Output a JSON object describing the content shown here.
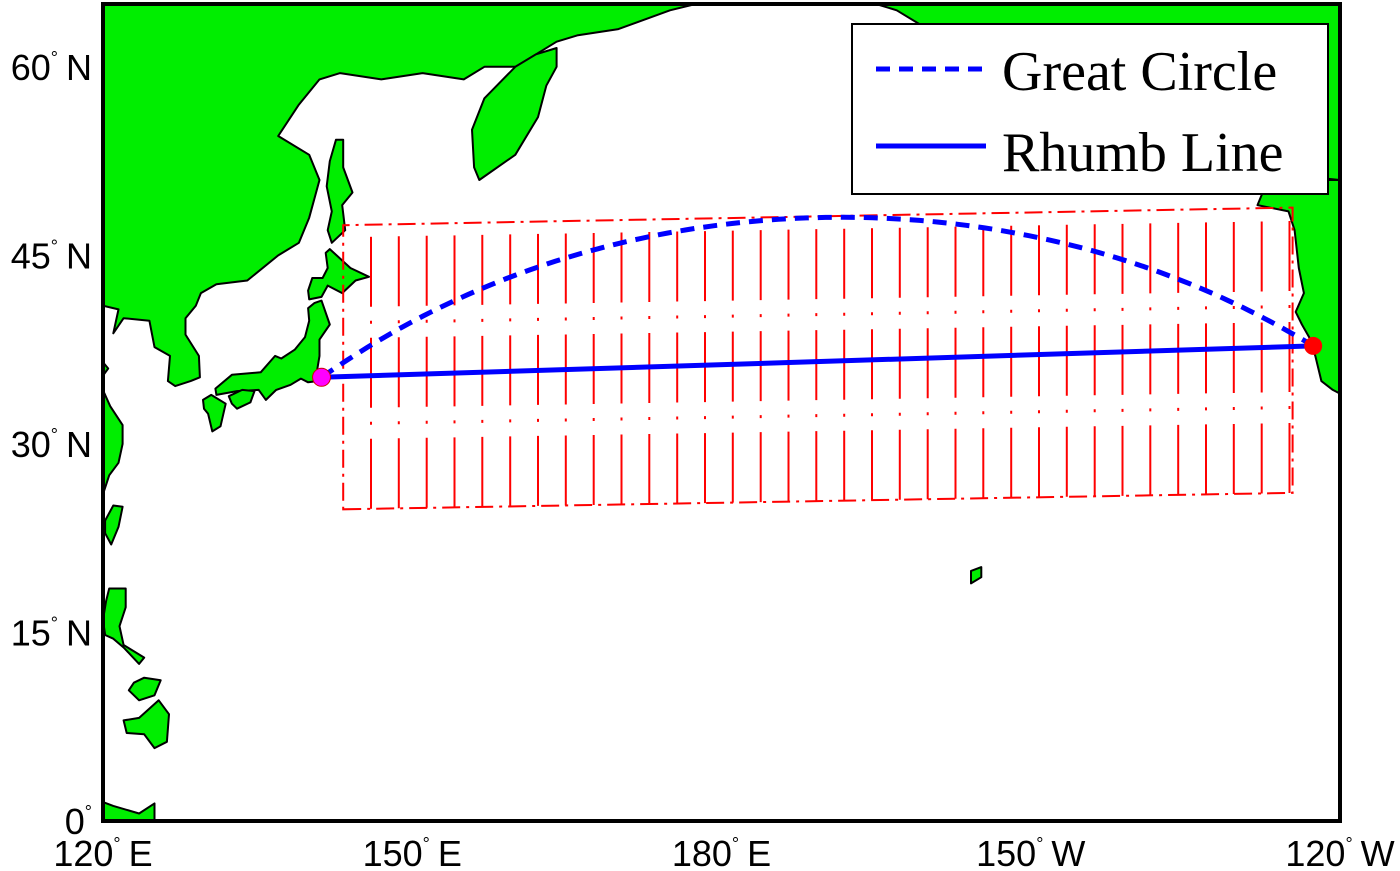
{
  "map": {
    "projection": "equidistant cylindrical",
    "extent": {
      "lon": [
        120,
        240
      ],
      "lat": [
        0,
        65
      ]
    },
    "colors": {
      "land": "#00ee00",
      "coast": "#000000",
      "frame": "#000000",
      "ocean": "#ffffff"
    }
  },
  "ticks": {
    "lat": [
      {
        "value": 0,
        "num": "0",
        "suffix": ""
      },
      {
        "value": 15,
        "num": "15",
        "suffix": "N"
      },
      {
        "value": 30,
        "num": "30",
        "suffix": "N"
      },
      {
        "value": 45,
        "num": "45",
        "suffix": "N"
      },
      {
        "value": 60,
        "num": "60",
        "suffix": "N"
      }
    ],
    "lon": [
      {
        "value": 120,
        "num": "120",
        "suffix": "E"
      },
      {
        "value": 150,
        "num": "150",
        "suffix": "E"
      },
      {
        "value": 180,
        "num": "180",
        "suffix": "E"
      },
      {
        "value": 210,
        "num": "150",
        "suffix": "W"
      },
      {
        "value": 240,
        "num": "120",
        "suffix": "W"
      }
    ],
    "degree_symbol": "°"
  },
  "legend": {
    "placement": "top-right",
    "items": [
      {
        "label": "Great Circle",
        "style": "dashed",
        "color": "#0000ff"
      },
      {
        "label": "Rhumb Line",
        "style": "solid",
        "color": "#0000ff"
      }
    ]
  },
  "routes": {
    "start": {
      "lon": 141.2,
      "lat": 35.3,
      "color": "#ff00ff"
    },
    "end": {
      "lon": 237.4,
      "lat": 37.8,
      "color": "#ff0000"
    },
    "great_circle": {
      "color": "#0000ff"
    },
    "rhumb_line": {
      "color": "#0000ff"
    }
  },
  "region_box": {
    "color": "#ff0000",
    "lon": [
      143.3,
      235.4
    ],
    "lat_bottom_west": 24.8,
    "lat_bottom_east": 26.1,
    "lat_top_west": 47.4,
    "lat_top_east": 48.8,
    "hatch_spacing_deg": 2.7
  },
  "land": [
    {
      "name": "asia-mainland",
      "coords": [
        [
          120,
          65
        ],
        [
          177.5,
          65
        ],
        [
          175,
          64.5
        ],
        [
          170,
          63
        ],
        [
          166,
          62.5
        ],
        [
          164,
          62
        ],
        [
          162,
          61
        ],
        [
          160,
          60
        ],
        [
          157,
          60
        ],
        [
          155,
          59
        ],
        [
          151,
          59.5
        ],
        [
          147,
          59
        ],
        [
          143,
          59.5
        ],
        [
          141,
          59
        ],
        [
          139,
          57
        ],
        [
          137,
          54.5
        ],
        [
          140,
          53
        ],
        [
          141,
          51
        ],
        [
          140,
          48
        ],
        [
          139,
          46
        ],
        [
          137,
          45
        ],
        [
          134,
          43
        ],
        [
          131,
          42.7
        ],
        [
          129.5,
          42
        ],
        [
          129,
          41
        ],
        [
          128,
          40
        ],
        [
          128,
          38.7
        ],
        [
          129.3,
          37
        ],
        [
          129.4,
          35.3
        ],
        [
          128.5,
          35
        ],
        [
          127,
          34.6
        ],
        [
          126.3,
          35
        ],
        [
          126.5,
          37
        ],
        [
          125,
          37.7
        ],
        [
          124.5,
          39.8
        ],
        [
          122,
          40
        ],
        [
          121,
          38.8
        ],
        [
          121.5,
          40.7
        ],
        [
          120,
          41
        ]
      ]
    },
    {
      "name": "kamchatka",
      "coords": [
        [
          156.5,
          51
        ],
        [
          160,
          53
        ],
        [
          162.2,
          56
        ],
        [
          163,
          58.5
        ],
        [
          164,
          60
        ],
        [
          164,
          61.5
        ],
        [
          162,
          61
        ],
        [
          160,
          60
        ],
        [
          157,
          57.5
        ],
        [
          155.8,
          55
        ],
        [
          156,
          52
        ]
      ]
    },
    {
      "name": "sakhalin",
      "coords": [
        [
          142.2,
          46
        ],
        [
          143.5,
          47
        ],
        [
          143.2,
          49
        ],
        [
          144.2,
          50
        ],
        [
          143.3,
          52
        ],
        [
          143.3,
          54.2
        ],
        [
          142.6,
          54.2
        ],
        [
          142,
          52.5
        ],
        [
          141.7,
          50.5
        ],
        [
          142.2,
          48.5
        ],
        [
          141.8,
          47
        ]
      ]
    },
    {
      "name": "hokkaido",
      "coords": [
        [
          140,
          41.5
        ],
        [
          141.2,
          41.7
        ],
        [
          141.8,
          42.6
        ],
        [
          143.2,
          42
        ],
        [
          144.5,
          43
        ],
        [
          145.8,
          43.3
        ],
        [
          144,
          44
        ],
        [
          142,
          45.5
        ],
        [
          141.6,
          45.2
        ],
        [
          141.8,
          44
        ],
        [
          141.3,
          43.2
        ],
        [
          140.3,
          43.2
        ],
        [
          139.9,
          42.2
        ]
      ]
    },
    {
      "name": "honshu",
      "coords": [
        [
          141.2,
          41.4
        ],
        [
          142,
          39.5
        ],
        [
          141,
          38.3
        ],
        [
          141,
          37
        ],
        [
          140.8,
          36
        ],
        [
          140.8,
          35
        ],
        [
          139.9,
          34.9
        ],
        [
          139.2,
          35.2
        ],
        [
          138.2,
          34.7
        ],
        [
          136.8,
          34.3
        ],
        [
          135.8,
          33.5
        ],
        [
          135.1,
          34.3
        ],
        [
          133,
          34.2
        ],
        [
          131,
          33.9
        ],
        [
          130.9,
          34.4
        ],
        [
          132.5,
          35.5
        ],
        [
          135.3,
          35.7
        ],
        [
          136.7,
          37
        ],
        [
          137.3,
          36.8
        ],
        [
          138.6,
          37.5
        ],
        [
          139.6,
          38.5
        ],
        [
          140,
          39.8
        ],
        [
          139.9,
          40.8
        ],
        [
          140.5,
          41.2
        ]
      ]
    },
    {
      "name": "kyushu",
      "coords": [
        [
          129.7,
          33.5
        ],
        [
          130.5,
          33.9
        ],
        [
          131.9,
          33.2
        ],
        [
          131.4,
          31.4
        ],
        [
          130.6,
          31
        ],
        [
          130.2,
          32.4
        ],
        [
          129.8,
          32.8
        ]
      ]
    },
    {
      "name": "shikoku",
      "coords": [
        [
          132.2,
          33.8
        ],
        [
          133.5,
          34.3
        ],
        [
          134.7,
          34.2
        ],
        [
          134.3,
          33.3
        ],
        [
          133,
          32.8
        ],
        [
          132.5,
          33.2
        ]
      ]
    },
    {
      "name": "china-south",
      "coords": [
        [
          120,
          36.5
        ],
        [
          120.5,
          36
        ],
        [
          119.6,
          35
        ],
        [
          120.7,
          33
        ],
        [
          121.9,
          31.5
        ],
        [
          121.9,
          30
        ],
        [
          121.5,
          28.5
        ],
        [
          120.6,
          27.5
        ],
        [
          120,
          26
        ],
        [
          120,
          36.5
        ]
      ]
    },
    {
      "name": "taiwan",
      "coords": [
        [
          121,
          25.1
        ],
        [
          121.9,
          25
        ],
        [
          121.5,
          23.4
        ],
        [
          120.8,
          22
        ],
        [
          120.2,
          22.9
        ],
        [
          120.2,
          23.9
        ]
      ]
    },
    {
      "name": "luzon",
      "coords": [
        [
          120.6,
          18.5
        ],
        [
          122.2,
          18.5
        ],
        [
          122.2,
          17
        ],
        [
          121.6,
          15.5
        ],
        [
          122,
          14
        ],
        [
          124,
          13
        ],
        [
          123.5,
          12.5
        ],
        [
          122,
          13.8
        ],
        [
          121,
          14.5
        ],
        [
          120.2,
          14.8
        ],
        [
          120,
          16
        ],
        [
          120.3,
          17.5
        ]
      ]
    },
    {
      "name": "mindanao",
      "coords": [
        [
          122,
          8
        ],
        [
          123.5,
          8.2
        ],
        [
          125.4,
          9.6
        ],
        [
          126.4,
          8.5
        ],
        [
          126.2,
          6.3
        ],
        [
          125,
          5.8
        ],
        [
          124,
          6.9
        ],
        [
          122.3,
          7
        ]
      ]
    },
    {
      "name": "visayas",
      "coords": [
        [
          123,
          11
        ],
        [
          124,
          11.4
        ],
        [
          125.6,
          11.2
        ],
        [
          125,
          10
        ],
        [
          123.5,
          9.6
        ],
        [
          122.5,
          10.4
        ]
      ]
    },
    {
      "name": "borneo-tip",
      "coords": [
        [
          120,
          0
        ],
        [
          120,
          1.5
        ],
        [
          121,
          1.2
        ],
        [
          123.5,
          0.6
        ],
        [
          125,
          1.4
        ],
        [
          125,
          0
        ]
      ]
    },
    {
      "name": "north-america",
      "coords": [
        [
          240,
          51
        ],
        [
          233,
          51
        ],
        [
          232,
          49
        ],
        [
          235,
          48.5
        ],
        [
          235.6,
          47
        ],
        [
          236,
          44
        ],
        [
          236.5,
          42
        ],
        [
          235.7,
          40.5
        ],
        [
          236.3,
          39.5
        ],
        [
          237,
          38.5
        ],
        [
          237.6,
          37
        ],
        [
          238.2,
          35
        ],
        [
          239.3,
          34.3
        ],
        [
          240,
          34
        ]
      ]
    },
    {
      "name": "alaska",
      "coords": [
        [
          240,
          65
        ],
        [
          195,
          65
        ],
        [
          197,
          64.5
        ],
        [
          200,
          63
        ],
        [
          203,
          61.5
        ],
        [
          206,
          60.5
        ],
        [
          210,
          60
        ],
        [
          214,
          60
        ],
        [
          217,
          59.5
        ],
        [
          220,
          59
        ],
        [
          223,
          58.5
        ],
        [
          226,
          56.5
        ],
        [
          228,
          55
        ],
        [
          230,
          54
        ],
        [
          232,
          53
        ],
        [
          234,
          51.5
        ],
        [
          240,
          51
        ]
      ]
    },
    {
      "name": "hawaii",
      "coords": [
        [
          204.2,
          19.9
        ],
        [
          205.2,
          20.2
        ],
        [
          205.2,
          19.4
        ],
        [
          204.2,
          18.9
        ]
      ]
    }
  ]
}
